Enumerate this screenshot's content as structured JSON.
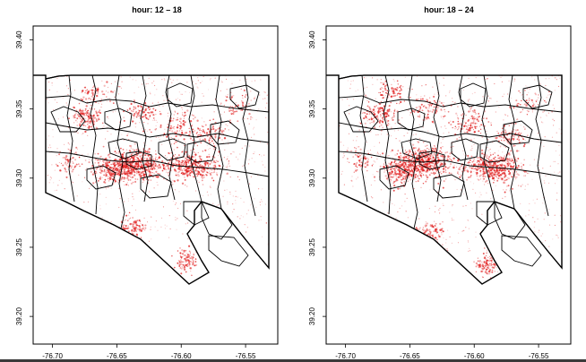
{
  "panels": [
    {
      "title": "hour: 12 – 18",
      "x_ticks": [
        "-76.70",
        "-76.65",
        "-76.60",
        "-76.55"
      ],
      "y_ticks": [
        "39.20",
        "39.25",
        "39.30",
        "39.35",
        "39.40"
      ]
    },
    {
      "title": "hour: 18 – 24",
      "x_ticks": [
        "-76.70",
        "-76.65",
        "-76.60",
        "-76.55"
      ],
      "y_ticks": [
        "39.20",
        "39.25",
        "39.30",
        "39.35",
        "39.40"
      ]
    }
  ],
  "chart_data": [
    {
      "type": "scatter",
      "title": "hour: 12 – 18",
      "xlabel": "",
      "ylabel": "",
      "xlim": [
        -76.715,
        -76.525
      ],
      "ylim": [
        39.18,
        39.41
      ],
      "grid": false,
      "hotspots": [
        {
          "x": -76.62,
          "y": 39.297,
          "intensity": "high"
        },
        {
          "x": -76.585,
          "y": 39.293,
          "intensity": "high"
        },
        {
          "x": -76.645,
          "y": 39.287,
          "intensity": "medium"
        },
        {
          "x": -76.68,
          "y": 39.33,
          "intensity": "medium"
        },
        {
          "x": -76.605,
          "y": 39.34,
          "intensity": "low"
        },
        {
          "x": -76.595,
          "y": 39.235,
          "intensity": "medium"
        },
        {
          "x": -76.64,
          "y": 39.245,
          "intensity": "medium"
        }
      ],
      "colors": {
        "points": "#e01818",
        "boundaries": "#000000"
      }
    },
    {
      "type": "scatter",
      "title": "hour: 18 – 24",
      "xlabel": "",
      "ylabel": "",
      "xlim": [
        -76.715,
        -76.525
      ],
      "ylim": [
        39.18,
        39.41
      ],
      "grid": false,
      "hotspots": [
        {
          "x": -76.625,
          "y": 39.296,
          "intensity": "high"
        },
        {
          "x": -76.58,
          "y": 39.293,
          "intensity": "high"
        },
        {
          "x": -76.65,
          "y": 39.285,
          "intensity": "medium"
        },
        {
          "x": -76.68,
          "y": 39.335,
          "intensity": "medium"
        },
        {
          "x": -76.6,
          "y": 39.345,
          "intensity": "low"
        },
        {
          "x": -76.59,
          "y": 39.237,
          "intensity": "medium"
        },
        {
          "x": -76.64,
          "y": 39.247,
          "intensity": "medium"
        }
      ],
      "colors": {
        "points": "#e01818",
        "boundaries": "#000000"
      }
    }
  ]
}
